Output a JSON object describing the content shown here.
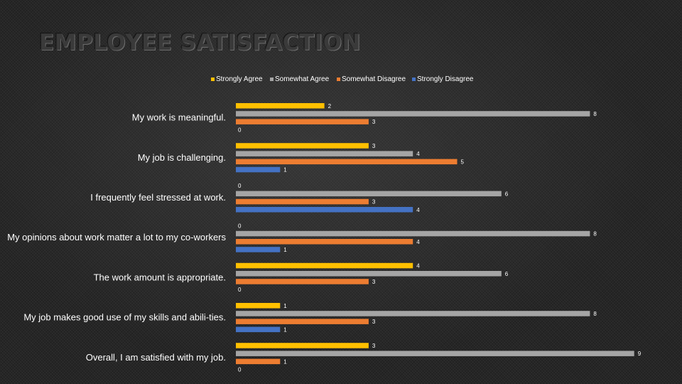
{
  "chart_data": {
    "type": "bar",
    "orientation": "horizontal",
    "title": "EMPLOYEE SATISFACTION",
    "categories": [
      "My work is meaningful.",
      "My job is challenging.",
      "I frequently feel stressed at work.",
      "My opinions about work matter a lot to my co-workers",
      "The work amount is appropriate.",
      "My job makes good use of my skills and abili-ties.",
      "Overall, I am satisfied with my job."
    ],
    "series": [
      {
        "name": "Strongly Agree",
        "color": "#FFC000",
        "values": [
          2,
          3,
          0,
          0,
          4,
          1,
          3
        ]
      },
      {
        "name": "Somewhat Agree",
        "color": "#A5A5A5",
        "values": [
          8,
          4,
          6,
          8,
          6,
          8,
          9
        ]
      },
      {
        "name": "Somewhat Disagree",
        "color": "#ED7D31",
        "values": [
          3,
          5,
          3,
          4,
          3,
          3,
          1
        ]
      },
      {
        "name": "Strongly Disagree",
        "color": "#4472C4",
        "values": [
          0,
          1,
          4,
          1,
          0,
          1,
          0
        ]
      }
    ],
    "xlim": [
      0,
      9
    ],
    "legend_position": "top",
    "grid": false,
    "data_labels": true
  }
}
